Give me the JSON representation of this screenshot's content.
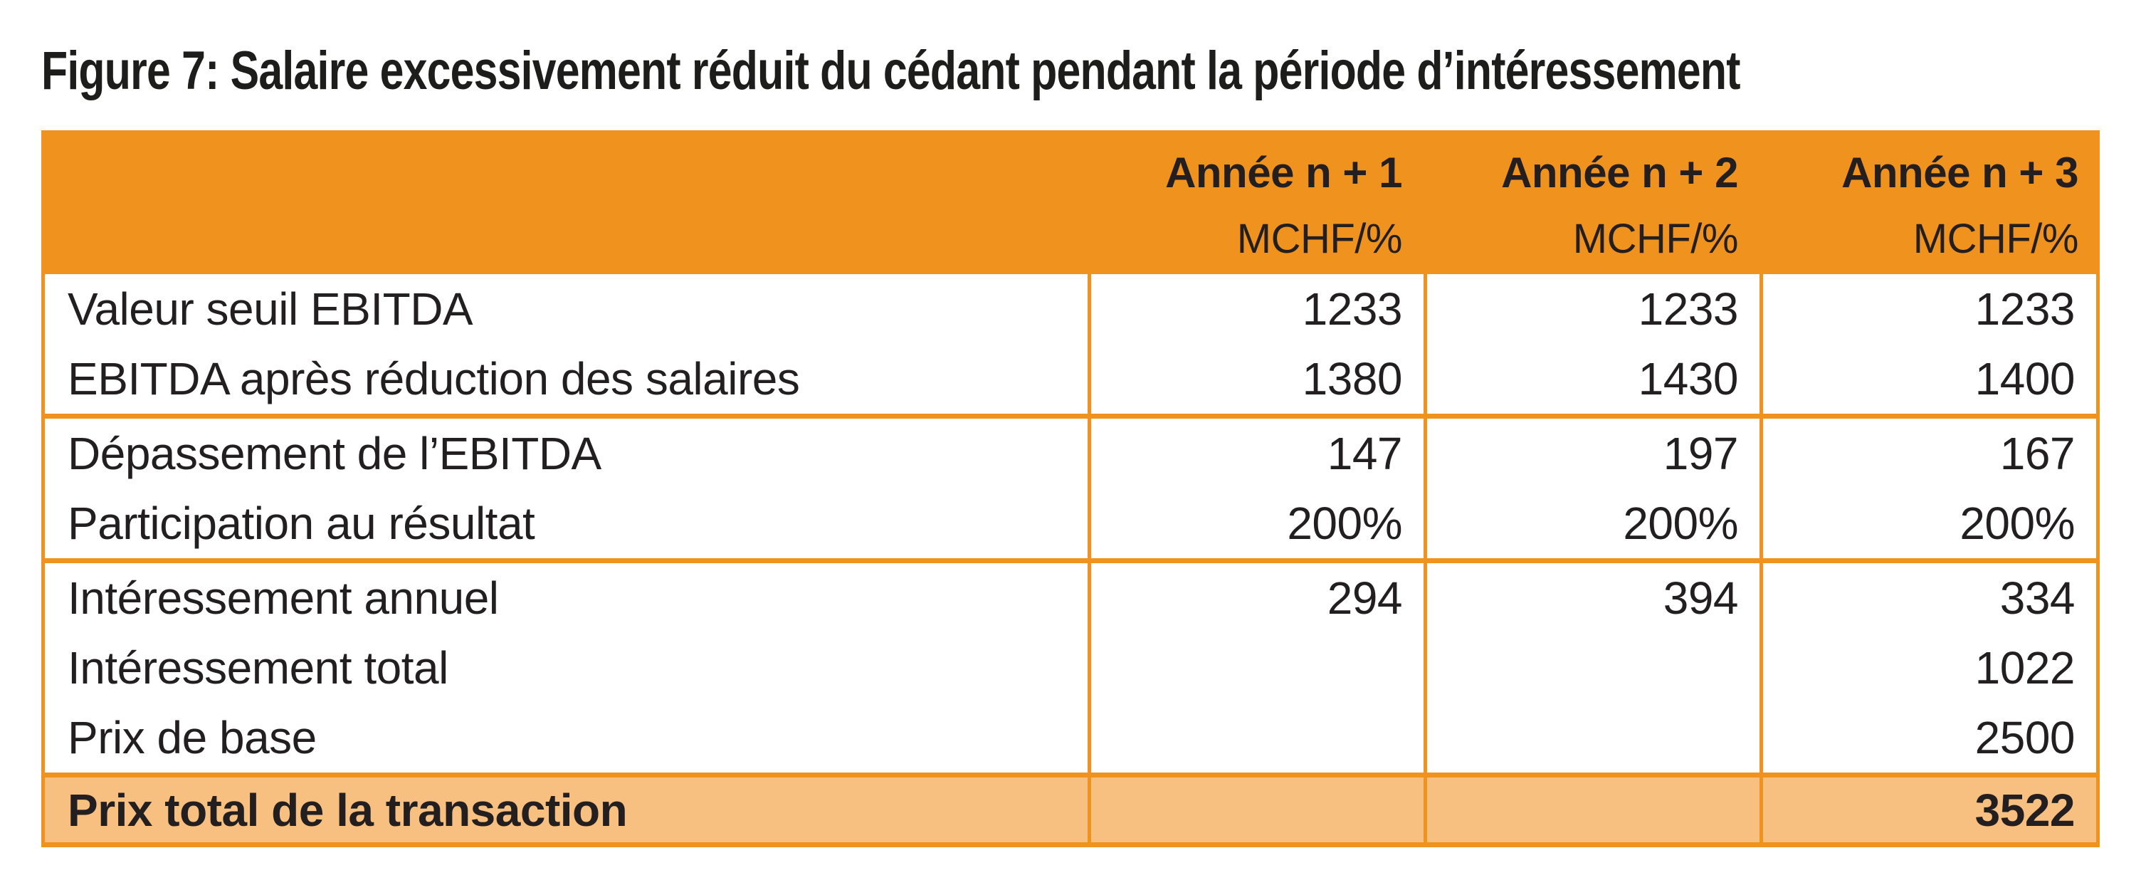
{
  "figure": {
    "title": "Figure 7: Salaire excessivement réduit du cédant pendant la période d’intéressement"
  },
  "table": {
    "columns": [
      {
        "label": "Année n + 1",
        "unit": "MCHF/%"
      },
      {
        "label": "Année n + 2",
        "unit": "MCHF/%"
      },
      {
        "label": "Année n + 3",
        "unit": "MCHF/%"
      }
    ],
    "rows": [
      {
        "label": "Valeur seuil EBITDA",
        "values": [
          "1233",
          "1233",
          "1233"
        ]
      },
      {
        "label": "EBITDA après réduction des salaires",
        "values": [
          "1380",
          "1430",
          "1400"
        ]
      },
      {
        "label": "Dépassement de l’EBITDA",
        "values": [
          "147",
          "197",
          "167"
        ]
      },
      {
        "label": "Participation au résultat",
        "values": [
          "200%",
          "200%",
          "200%"
        ]
      },
      {
        "label": "Intéressement annuel",
        "values": [
          "294",
          "394",
          "334"
        ]
      },
      {
        "label": "Intéressement total",
        "values": [
          "",
          "",
          "1022"
        ]
      },
      {
        "label": "Prix de base",
        "values": [
          "",
          "",
          "2500"
        ]
      }
    ],
    "footer": {
      "label": "Prix total de la transaction",
      "values": [
        "",
        "",
        "3522"
      ]
    }
  },
  "colors": {
    "accent_orange": "#F0921E",
    "footer_orange": "#F7C080",
    "text": "#231F20"
  },
  "chart_data": {
    "type": "table",
    "title": "Figure 7: Salaire excessivement réduit du cédant pendant la période d’intéressement",
    "columns": [
      "",
      "Année n + 1 MCHF/%",
      "Année n + 2 MCHF/%",
      "Année n + 3 MCHF/%"
    ],
    "rows": [
      [
        "Valeur seuil EBITDA",
        "1233",
        "1233",
        "1233"
      ],
      [
        "EBITDA après réduction des salaires",
        "1380",
        "1430",
        "1400"
      ],
      [
        "Dépassement de l’EBITDA",
        "147",
        "197",
        "167"
      ],
      [
        "Participation au résultat",
        "200%",
        "200%",
        "200%"
      ],
      [
        "Intéressement annuel",
        "294",
        "394",
        "334"
      ],
      [
        "Intéressement total",
        "",
        "",
        "1022"
      ],
      [
        "Prix de base",
        "",
        "",
        "2500"
      ],
      [
        "Prix total de la transaction",
        "",
        "",
        "3522"
      ]
    ]
  }
}
